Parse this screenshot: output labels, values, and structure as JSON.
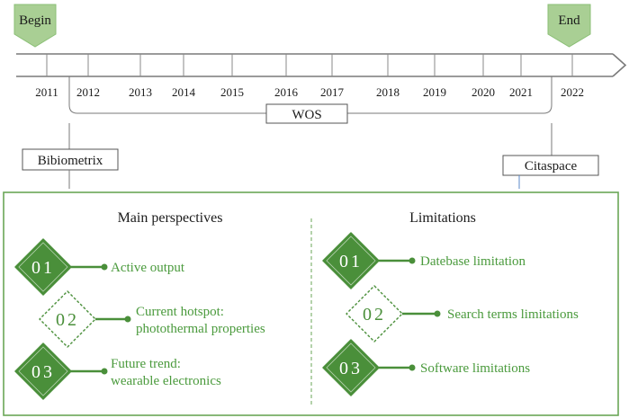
{
  "timeline": {
    "begin_label": "Begin",
    "end_label": "End",
    "years": [
      "2011",
      "2012",
      "2013",
      "2014",
      "2015",
      "2016",
      "2017",
      "2018",
      "2019",
      "2020",
      "2021",
      "2022"
    ],
    "database_label": "WOS"
  },
  "tools": {
    "left": "Bibiometrix",
    "right": "Citaspace"
  },
  "panel": {
    "perspectives": {
      "title": "Main perspectives",
      "items": [
        {
          "number": "01",
          "lines": [
            "Active output"
          ],
          "style": "filled"
        },
        {
          "number": "02",
          "lines": [
            "Current hotspot:",
            "photothermal properties"
          ],
          "style": "outline"
        },
        {
          "number": "03",
          "lines": [
            "Future trend:",
            "wearable electronics"
          ],
          "style": "filled"
        }
      ]
    },
    "limitations": {
      "title": "Limitations",
      "items": [
        {
          "number": "01",
          "lines": [
            "Datebase limitation"
          ],
          "style": "filled"
        },
        {
          "number": "02",
          "lines": [
            "Search terms limitations"
          ],
          "style": "outline"
        },
        {
          "number": "03",
          "lines": [
            "Software limitations"
          ],
          "style": "filled"
        }
      ]
    }
  },
  "colors": {
    "green_dark": "#4a8f3a",
    "green_text": "#4a9a3c",
    "flag_green": "#a9cf94",
    "line": "#7a7a7a"
  }
}
